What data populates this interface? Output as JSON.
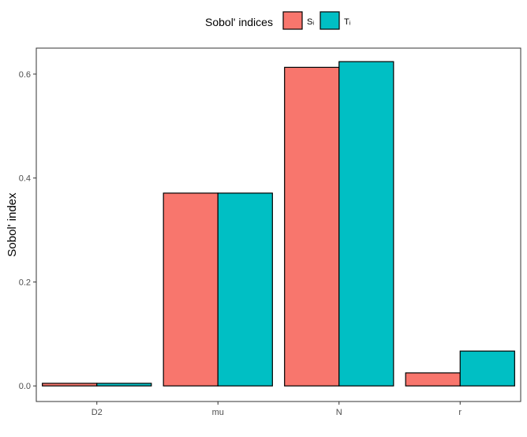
{
  "chart_data": {
    "type": "bar",
    "categories": [
      "D2",
      "mu",
      "N",
      "r"
    ],
    "series": [
      {
        "name": "Sᵢ",
        "color": "#F8766D",
        "values": [
          0.005,
          0.371,
          0.613,
          0.025
        ]
      },
      {
        "name": "Tᵢ",
        "color": "#00BFC4",
        "values": [
          0.005,
          0.371,
          0.624,
          0.067
        ]
      }
    ],
    "ylabel": "Sobol' index",
    "xlabel": "",
    "ylim": [
      -0.03,
      0.65
    ],
    "yticks": [
      0.0,
      0.2,
      0.4,
      0.6
    ],
    "ytick_labels": [
      "0.0",
      "0.2",
      "0.4",
      "0.6"
    ],
    "legend": {
      "title": "Sobol' indices",
      "position": "top"
    },
    "grid": false
  }
}
